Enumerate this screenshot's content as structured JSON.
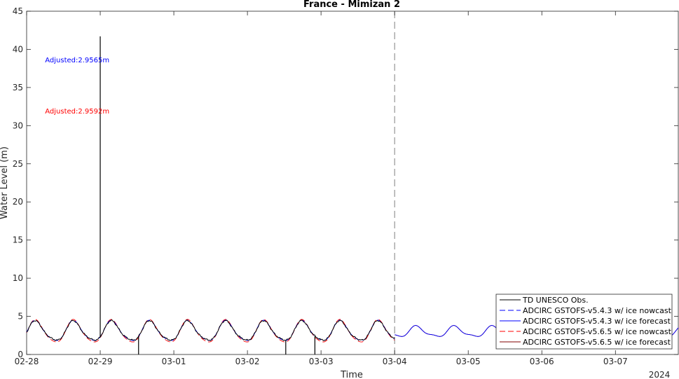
{
  "chart_data": {
    "type": "line",
    "title": "France - Mimizan 2",
    "xlabel": "Time",
    "ylabel": "Water Level (m)",
    "ylim": [
      0,
      45
    ],
    "yticks": [
      0,
      5,
      10,
      15,
      20,
      25,
      30,
      35,
      40,
      45
    ],
    "xlim": [
      "2024-02-28 00:00",
      "2024-03-07 20:30"
    ],
    "xtick_values": [
      "2024-02-28",
      "2024-02-29",
      "2024-03-01",
      "2024-03-02",
      "2024-03-03",
      "2024-03-04",
      "2024-03-05",
      "2024-03-06",
      "2024-03-07"
    ],
    "xtick_labels": [
      "02-28",
      "02-29",
      "03-01",
      "03-02",
      "03-03",
      "03-04",
      "03-05",
      "03-06",
      "03-07"
    ],
    "x_year_label": "2024",
    "nowcast_forecast_divider": "2024-03-04 00:00",
    "grid": false,
    "legend_position": "bottom-right",
    "annotations": [
      {
        "text": "Adjusted:2.9565m",
        "color": "#0000ff",
        "x": "2024-02-28 06:00",
        "y": 38.3
      },
      {
        "text": "Adjusted:2.9592m",
        "color": "#ff0000",
        "x": "2024-02-28 06:00",
        "y": 31.6
      }
    ],
    "series": [
      {
        "name": "TD UNESCO Obs.",
        "color": "#000000",
        "style": "solid",
        "x_start": "2024-02-28 00:00",
        "x_end": "2024-03-04 00:00",
        "tide": {
          "mean": 3.0,
          "amplitude": 1.25,
          "period_hours": 12.42,
          "peak_time": "2024-02-28 03:00"
        },
        "spikes": [
          {
            "x": "2024-02-29 00:00",
            "y": 41.7
          },
          {
            "x": "2024-02-29 12:30",
            "y": 0.0
          },
          {
            "x": "2024-03-02 12:30",
            "y": 0.0
          },
          {
            "x": "2024-03-02 22:00",
            "y": 0.0
          }
        ]
      },
      {
        "name": "ADCIRC GSTOFS-v5.4.3 w/ ice nowcast",
        "color": "#0000ff",
        "style": "dashed",
        "x_start": "2024-02-28 00:00",
        "x_end": "2024-03-04 00:00",
        "tide": {
          "mean": 3.0,
          "amplitude": 1.3,
          "period_hours": 12.42,
          "peak_time": "2024-02-28 03:00"
        }
      },
      {
        "name": "ADCIRC GSTOFS-v5.4.3 w/ ice forecast",
        "color": "#0000ff",
        "style": "solid",
        "x_start": "2024-03-04 00:00",
        "x_end": "2024-03-07 20:30",
        "tide": {
          "mean": 2.95,
          "amplitude": 0.65,
          "period_hours": 12.42,
          "peak_time": "2024-02-28 03:00"
        }
      },
      {
        "name": "ADCIRC GSTOFS-v5.6.5 w/ ice nowcast",
        "color": "#ff0000",
        "style": "dashed",
        "x_start": "2024-02-28 00:00",
        "x_end": "2024-03-04 00:00",
        "tide": {
          "mean": 2.95,
          "amplitude": 1.45,
          "period_hours": 12.42,
          "peak_time": "2024-02-28 03:00"
        }
      },
      {
        "name": "ADCIRC GSTOFS-v5.6.5 w/ ice forecast",
        "color": "#800000",
        "style": "solid",
        "x_start": "2024-03-04 00:00",
        "x_end": "2024-03-07 20:30",
        "tide": {
          "mean": 2.95,
          "amplitude": 0.65,
          "period_hours": 12.42,
          "peak_time": "2024-02-28 03:00"
        }
      }
    ]
  }
}
